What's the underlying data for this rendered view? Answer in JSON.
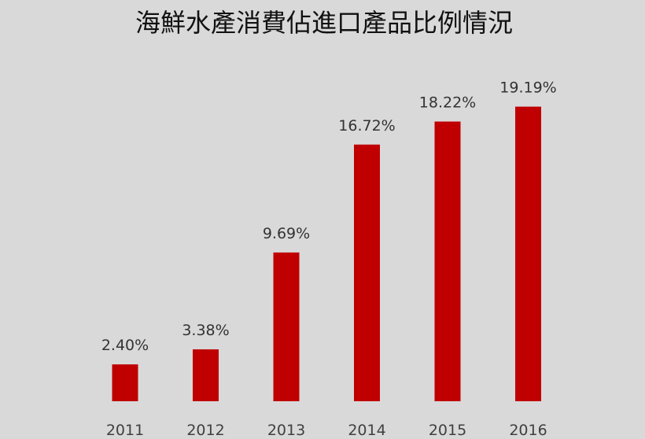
{
  "chart_data": {
    "type": "bar",
    "title": "海鮮水產消費佔進口產品比例情況",
    "categories": [
      "2011",
      "2012",
      "2013",
      "2014",
      "2015",
      "2016"
    ],
    "values": [
      2.4,
      3.38,
      9.69,
      16.72,
      18.22,
      19.19
    ],
    "data_labels": [
      "2.40%",
      "3.38%",
      "9.69%",
      "16.72%",
      "18.22%",
      "19.19%"
    ],
    "unit": "%",
    "ylim": [
      0,
      20.5
    ],
    "grid": false,
    "legend": "none",
    "bar_color": "#c00000",
    "background": "#d9d9d9"
  }
}
